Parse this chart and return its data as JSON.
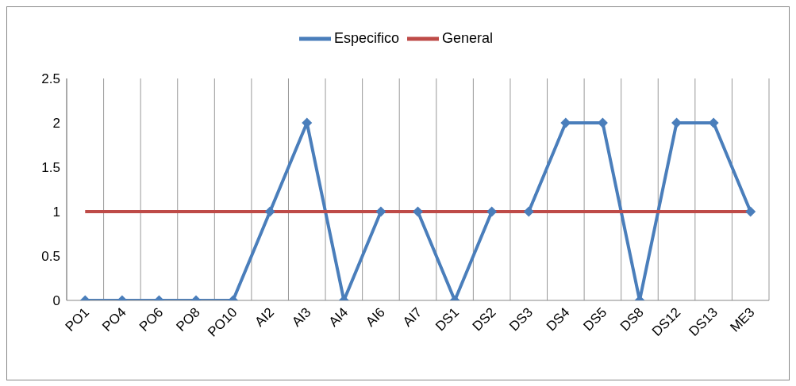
{
  "chart_data": {
    "type": "line",
    "categories": [
      "PO1",
      "PO4",
      "PO6",
      "PO8",
      "PO10",
      "AI2",
      "AI3",
      "AI4",
      "AI6",
      "AI7",
      "DS1",
      "DS2",
      "DS3",
      "DS4",
      "DS5",
      "DS8",
      "DS12",
      "DS13",
      "ME3"
    ],
    "series": [
      {
        "name": "Especifico",
        "color": "#4a7ebb",
        "marker": "diamond",
        "values": [
          0,
          0,
          0,
          0,
          0,
          1,
          2,
          0,
          1,
          1,
          0,
          1,
          1,
          2,
          2,
          0,
          2,
          2,
          1
        ]
      },
      {
        "name": "General",
        "color": "#be4b48",
        "marker": "none",
        "values": [
          1,
          1,
          1,
          1,
          1,
          1,
          1,
          1,
          1,
          1,
          1,
          1,
          1,
          1,
          1,
          1,
          1,
          1,
          1
        ]
      }
    ],
    "ylim": [
      0,
      2.5
    ],
    "yticks": [
      0,
      0.5,
      1,
      1.5,
      2,
      2.5
    ],
    "grid": "x",
    "legend": "top",
    "line_style": "solid"
  }
}
